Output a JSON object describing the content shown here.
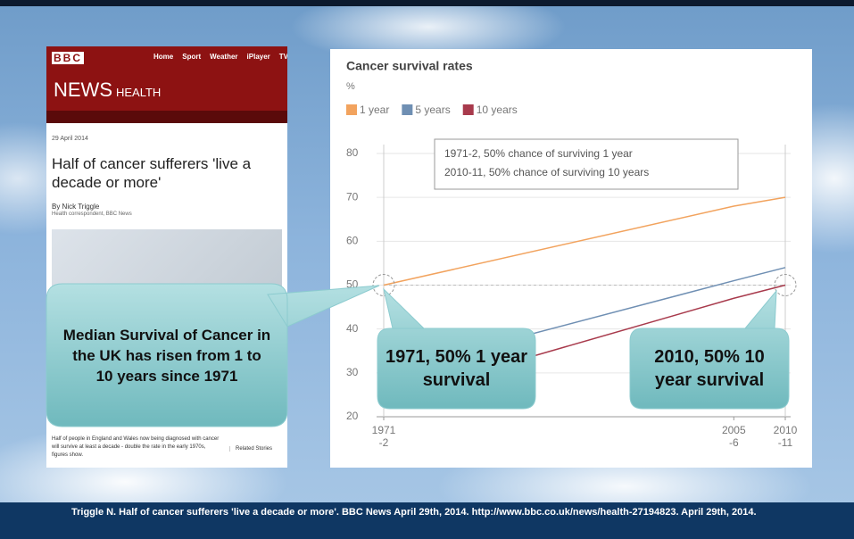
{
  "article": {
    "logo": "BBC",
    "nav": [
      "Home",
      "Sport",
      "Weather",
      "iPlayer",
      "TV"
    ],
    "section": [
      "NEWS",
      "HEALTH"
    ],
    "date": "29 April 2014",
    "headline": "Half of cancer sufferers 'live a decade or more'",
    "byline": "By Nick Triggle",
    "role": "Health correspondent, BBC News",
    "summary": "Half of people in England and Wales now being diagnosed with cancer will survive at least a decade - double the rate in the early 1970s, figures show.",
    "related": "Related Stories"
  },
  "chart_data": {
    "type": "line",
    "title": "Cancer survival rates",
    "y_label": "%",
    "x": [
      1971,
      2005,
      2010
    ],
    "series": [
      {
        "name": "1 year",
        "color": "#f2a35e",
        "values": [
          50,
          68,
          70
        ]
      },
      {
        "name": "5 years",
        "color": "#6f8fb3",
        "values": [
          30,
          51,
          54
        ]
      },
      {
        "name": "10 years",
        "color": "#a83a4c",
        "values": [
          24,
          47,
          50
        ]
      }
    ],
    "xlim": [
      1971,
      2010
    ],
    "xticks": [
      {
        "value": 1971,
        "label": "1971\n-2"
      },
      {
        "value": 2005,
        "label": "2005\n-6"
      },
      {
        "value": 2010,
        "label": "2010\n-11"
      }
    ],
    "ylim": [
      20,
      80
    ],
    "yticks": [
      20,
      30,
      40,
      50,
      60,
      70,
      80
    ],
    "reference_line": 50,
    "grid": true,
    "annotation": [
      "1971-2, 50% chance of surviving 1 year",
      "2010-11, 50% chance of surviving 10 years"
    ]
  },
  "callouts": [
    "Median Survival of Cancer in the UK has risen from 1 to 10 years since 1971",
    "1971, 50% 1 year survival",
    "2010, 50% 10 year survival"
  ],
  "citation": "Triggle N. Half of cancer sufferers 'live a decade or more'. BBC News April 29th, 2014. http://www.bbc.co.uk/news/health-27194823. April 29th, 2014."
}
